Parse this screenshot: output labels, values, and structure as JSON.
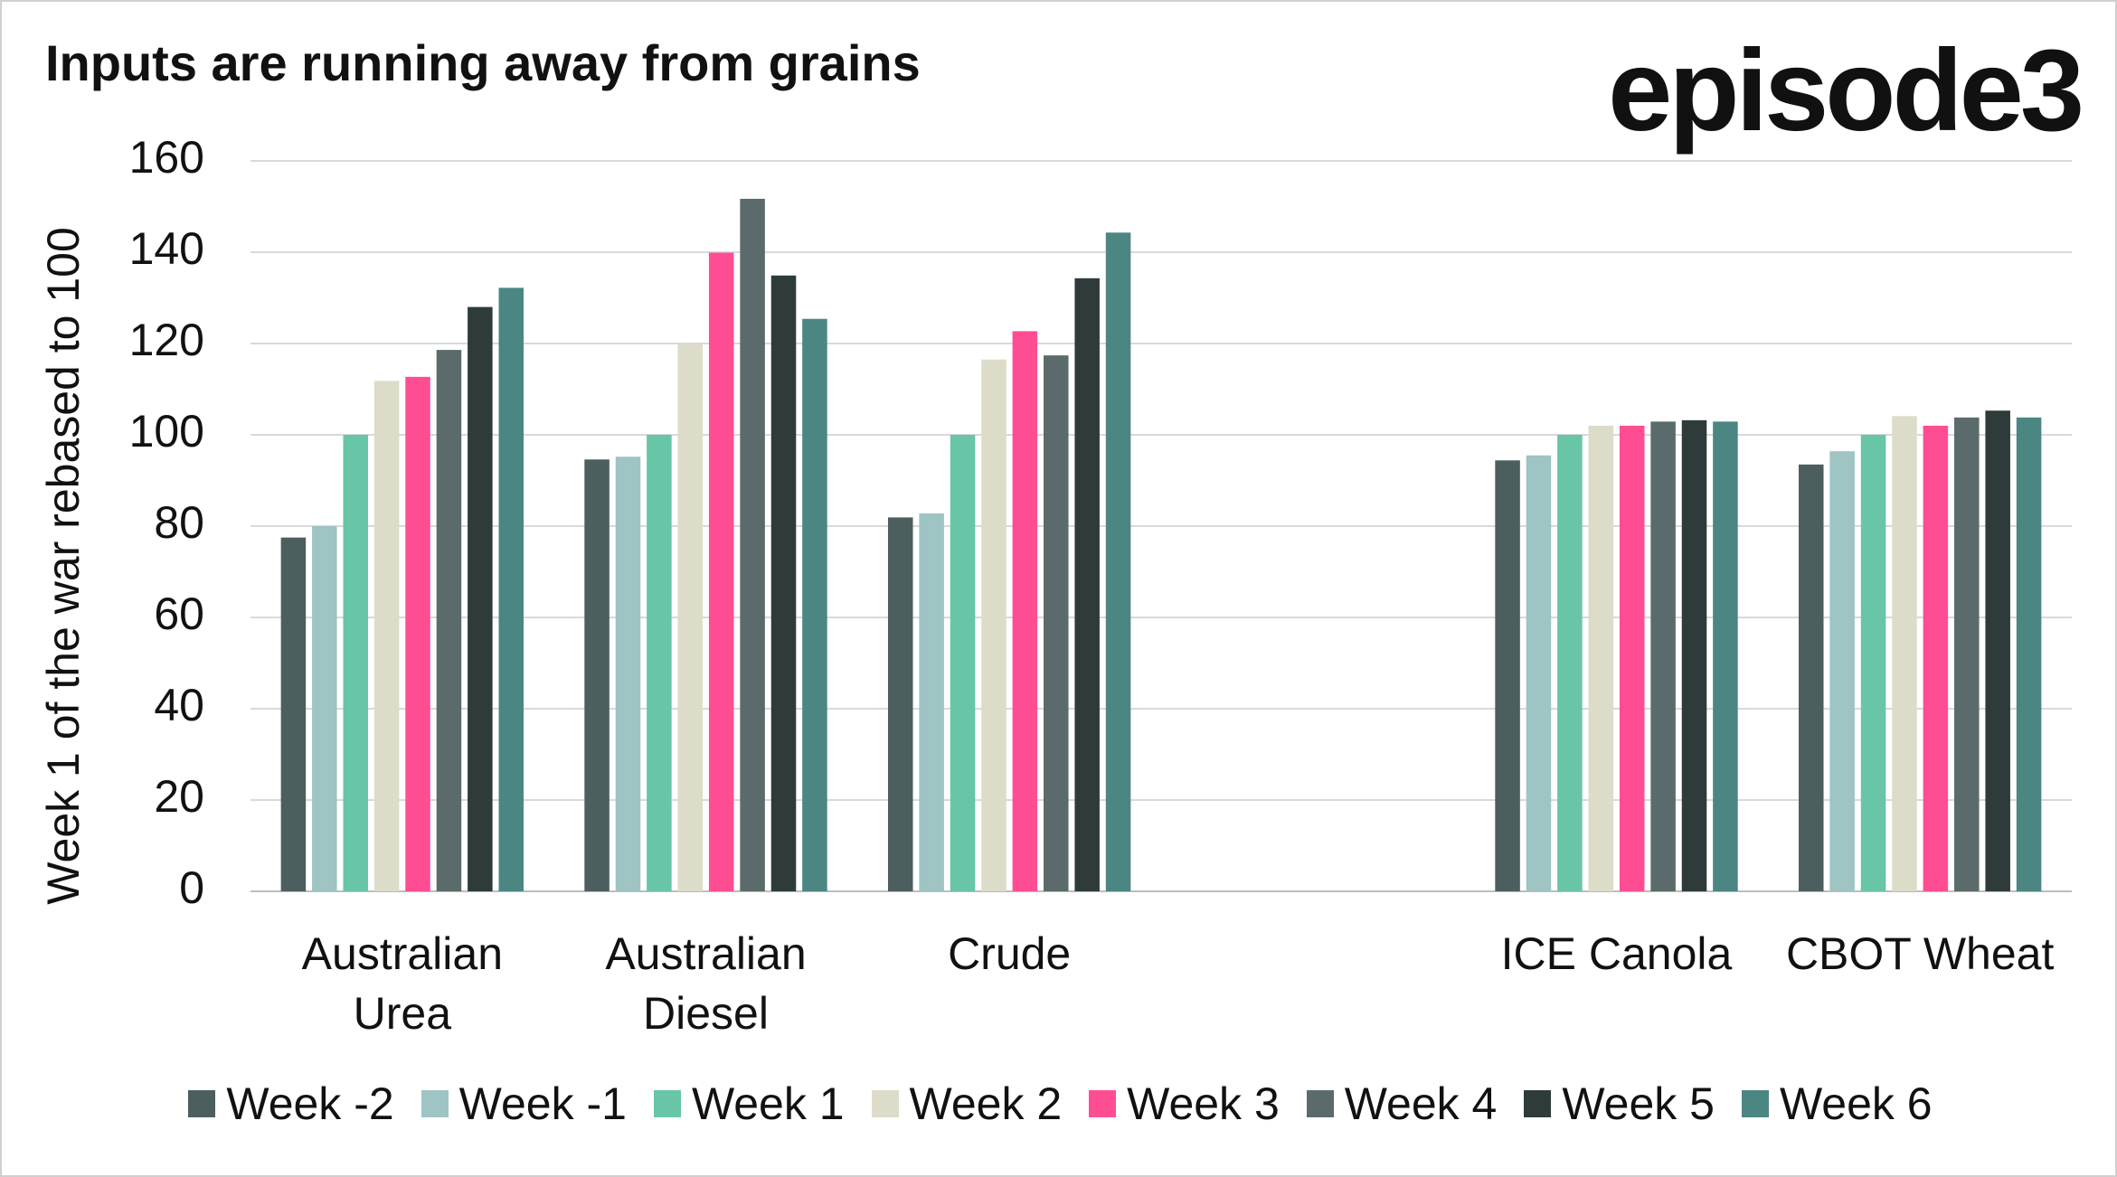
{
  "chart_data": {
    "type": "bar",
    "title": "Inputs are running away from grains",
    "watermark": "episode3",
    "y_label": "Week 1 of the war rebased to 100",
    "categories": [
      "Australian Urea",
      "Australian Diesel",
      "Crude",
      null,
      "ICE Canola",
      "CBOT Wheat"
    ],
    "series": [
      {
        "name": "Week -2",
        "color": "#4d5e5e",
        "values": [
          77.5,
          94.6,
          81.9,
          null,
          94.4,
          93.5
        ]
      },
      {
        "name": "Week -1",
        "color": "#9ec4c4",
        "values": [
          80,
          95.2,
          82.8,
          null,
          95.5,
          96.4
        ]
      },
      {
        "name": "Week 1",
        "color": "#68c5a8",
        "values": [
          100,
          100,
          100,
          null,
          100,
          100
        ]
      },
      {
        "name": "Week 2",
        "color": "#dcdcc8",
        "values": [
          111.8,
          119.8,
          116.5,
          null,
          102,
          104.1
        ]
      },
      {
        "name": "Week 3",
        "color": "#ff4d94",
        "values": [
          112.7,
          139.9,
          122.7,
          null,
          102,
          102
        ]
      },
      {
        "name": "Week 4",
        "color": "#5b6b6b",
        "values": [
          118.6,
          151.7,
          117.4,
          null,
          102.9,
          103.8
        ]
      },
      {
        "name": "Week 5",
        "color": "#2f3b3b",
        "values": [
          128,
          134.9,
          134.3,
          null,
          103.2,
          105.3
        ]
      },
      {
        "name": "Week 6",
        "color": "#4b8682",
        "values": [
          132.2,
          125.4,
          144.3,
          null,
          102.9,
          103.8
        ]
      }
    ],
    "ylim": [
      0,
      160
    ],
    "yticks": [
      0,
      20,
      40,
      60,
      80,
      100,
      120,
      140,
      160
    ],
    "grid": true,
    "legend": "bottom"
  }
}
